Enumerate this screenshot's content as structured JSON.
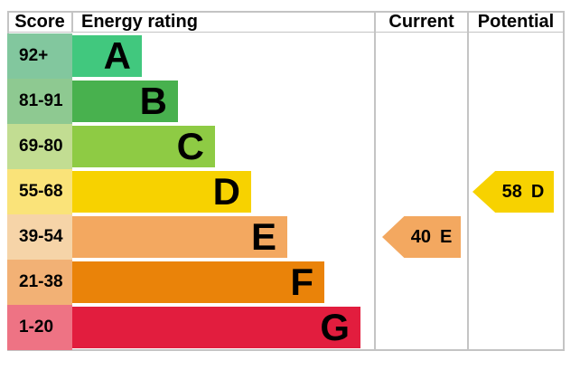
{
  "header": {
    "score": "Score",
    "energy_rating": "Energy rating",
    "current": "Current",
    "potential": "Potential"
  },
  "bands": [
    {
      "letter": "A",
      "score_range": "92+",
      "bar_color": "#41c87e",
      "score_bg": "#82c79e"
    },
    {
      "letter": "B",
      "score_range": "81-91",
      "bar_color": "#48b14e",
      "score_bg": "#8ec991"
    },
    {
      "letter": "C",
      "score_range": "69-80",
      "bar_color": "#8ecb44",
      "score_bg": "#c2dd92"
    },
    {
      "letter": "D",
      "score_range": "55-68",
      "bar_color": "#f7d200",
      "score_bg": "#fae379"
    },
    {
      "letter": "E",
      "score_range": "39-54",
      "bar_color": "#f3a860",
      "score_bg": "#f6d4a8"
    },
    {
      "letter": "F",
      "score_range": "21-38",
      "bar_color": "#ea8309",
      "score_bg": "#f2b175"
    },
    {
      "letter": "G",
      "score_range": "1-20",
      "bar_color": "#e21d3e",
      "score_bg": "#ee7384"
    }
  ],
  "current": {
    "value": "40",
    "band": "E",
    "color": "#f3a860"
  },
  "potential": {
    "value": "58",
    "band": "D",
    "color": "#f7d200"
  },
  "colors": {
    "grid_line": "#c4c4c4",
    "text": "#000000",
    "background": "#ffffff"
  },
  "chart_data": {
    "type": "bar",
    "title": "Energy rating",
    "categories": [
      "A",
      "B",
      "C",
      "D",
      "E",
      "F",
      "G"
    ],
    "score_ranges": [
      "92+",
      "81-91",
      "69-80",
      "55-68",
      "39-54",
      "21-38",
      "1-20"
    ],
    "columns": [
      "Score",
      "Energy rating",
      "Current",
      "Potential"
    ],
    "bar_colors": [
      "#41c87e",
      "#48b14e",
      "#8ecb44",
      "#f7d200",
      "#f3a860",
      "#ea8309",
      "#e21d3e"
    ],
    "current": {
      "score": 40,
      "rating": "E"
    },
    "potential": {
      "score": 58,
      "rating": "D"
    },
    "legend_position": "none",
    "grid": false
  }
}
